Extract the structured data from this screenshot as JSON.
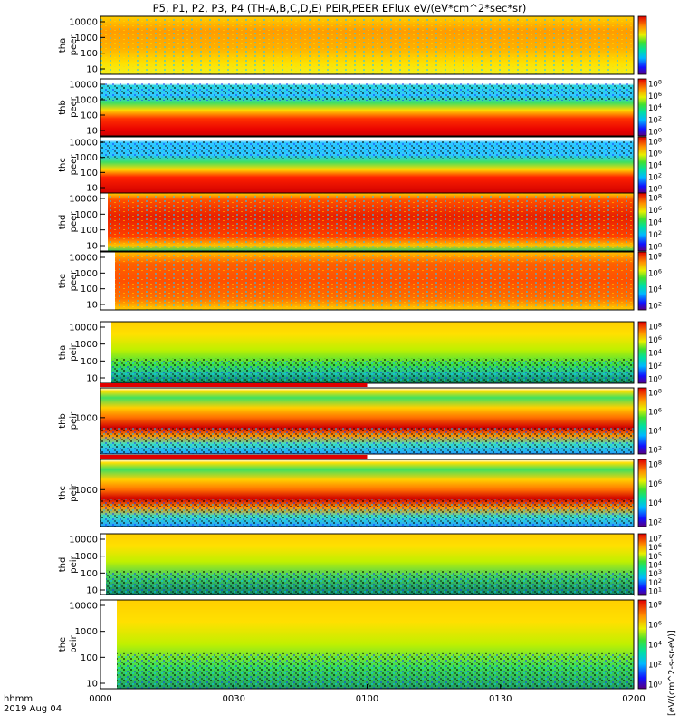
{
  "title": "P5, P1, P2, P3, P4 (TH-A,B,C,D,E) PEIR,PEER EFlux eV/(eV*cm^2*sec*sr)",
  "chart_data": {
    "type": "heatmap",
    "title": "P5, P1, P2, P3, P4 (TH-A,B,C,D,E) PEIR,PEER EFlux eV/(eV*cm^2*sec*sr)",
    "x_axis": {
      "label_line1": "hhmm",
      "label_line2": "2019 Aug 04",
      "ticks": [
        "0000",
        "0030",
        "0100",
        "0130",
        "0200"
      ],
      "range": [
        "00:00",
        "02:00"
      ]
    },
    "colorbar_unit": "[eV/(cm^2-s-sr-eV)]",
    "panels": [
      {
        "name": "tha peer",
        "ylabel": [
          "tha",
          "peer"
        ],
        "yticks": [
          "10000",
          "1000",
          "100",
          "10"
        ],
        "cbar_ticks": []
      },
      {
        "name": "thb peer",
        "ylabel": [
          "thb",
          "peer"
        ],
        "yticks": [
          "10000",
          "1000",
          "100",
          "10"
        ],
        "cbar_ticks": [
          "10^8",
          "10^6",
          "10^4",
          "10^2",
          "10^0"
        ]
      },
      {
        "name": "thc peer",
        "ylabel": [
          "thc",
          "peer"
        ],
        "yticks": [
          "10000",
          "1000",
          "100",
          "10"
        ],
        "cbar_ticks": [
          "10^8",
          "10^6",
          "10^4",
          "10^2",
          "10^0"
        ]
      },
      {
        "name": "thd peer",
        "ylabel": [
          "thd",
          "peer"
        ],
        "yticks": [
          "10000",
          "1000",
          "100",
          "10"
        ],
        "cbar_ticks": [
          "10^8",
          "10^6",
          "10^4",
          "10^2",
          "10^0"
        ]
      },
      {
        "name": "the peer",
        "ylabel": [
          "the",
          "peer"
        ],
        "yticks": [
          "10000",
          "1000",
          "100",
          "10"
        ],
        "cbar_ticks": [
          "10^8",
          "10^6",
          "10^4",
          "10^2"
        ]
      },
      {
        "name": "tha peir",
        "ylabel": [
          "tha",
          "peir"
        ],
        "yticks": [
          "10000",
          "1000",
          "100",
          "10"
        ],
        "cbar_ticks": [
          "10^8",
          "10^6",
          "10^4",
          "10^2",
          "10^0"
        ]
      },
      {
        "name": "thb peir",
        "ylabel": [
          "thb",
          "peir"
        ],
        "yticks": [
          "1000"
        ],
        "cbar_ticks": [
          "10^8",
          "10^6",
          "10^4",
          "10^2"
        ]
      },
      {
        "name": "thc peir",
        "ylabel": [
          "thc",
          "peir"
        ],
        "yticks": [
          "1000"
        ],
        "cbar_ticks": [
          "10^8",
          "10^6",
          "10^4",
          "10^2"
        ]
      },
      {
        "name": "thd peir",
        "ylabel": [
          "thd",
          "peir"
        ],
        "yticks": [
          "10000",
          "1000",
          "100",
          "10"
        ],
        "cbar_ticks": [
          "10^7",
          "10^6",
          "10^5",
          "10^4",
          "10^3",
          "10^2",
          "10^1"
        ]
      },
      {
        "name": "the peir",
        "ylabel": [
          "the",
          "peir"
        ],
        "yticks": [
          "10000",
          "1000",
          "100",
          "10"
        ],
        "cbar_ticks": [
          "10^8",
          "10^6",
          "10^4",
          "10^2",
          "10^0"
        ]
      }
    ]
  }
}
